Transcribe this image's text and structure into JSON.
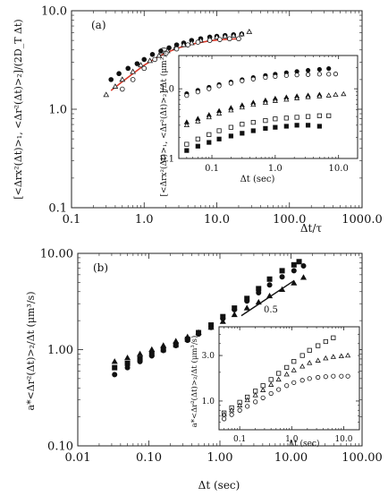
{
  "chart_data": [
    {
      "type": "scatter",
      "panel_label": "(a)",
      "xscale": "log",
      "yscale": "log",
      "xlim": [
        0.1,
        1000.0
      ],
      "ylim": [
        0.1,
        10.0
      ],
      "xticklabels": [
        "0.1",
        "1.0",
        "10.0",
        "100.0",
        "1000.0"
      ],
      "yticklabels": [
        "0.1",
        "1.0",
        "10.0"
      ],
      "xlabel": "Δt/τ",
      "ylabel": "[<Δrx²(Δt)>₁, <Δr²(Δt)>₂]/(2D_T Δt)",
      "series": [
        {
          "marker": "filled-circle",
          "x": [
            0.35,
            0.45,
            0.6,
            0.8,
            1.0,
            1.3,
            1.7,
            2.2,
            2.8,
            3.5,
            4.5,
            6,
            8,
            10,
            13,
            17,
            22
          ],
          "y": [
            2.0,
            2.3,
            2.6,
            2.9,
            3.2,
            3.6,
            3.9,
            4.2,
            4.5,
            4.7,
            5.0,
            5.2,
            5.4,
            5.5,
            5.6,
            5.7,
            5.8
          ]
        },
        {
          "marker": "open-triangle",
          "x": [
            0.3,
            0.4,
            0.5,
            0.7,
            0.9,
            1.2,
            1.6,
            2.1,
            2.7,
            3.5,
            4.5,
            6,
            8,
            10,
            13,
            17,
            22,
            28
          ],
          "y": [
            1.4,
            1.7,
            2.0,
            2.4,
            2.8,
            3.1,
            3.5,
            3.9,
            4.2,
            4.5,
            4.7,
            5.0,
            5.2,
            5.4,
            5.5,
            5.6,
            5.8,
            6.1
          ]
        },
        {
          "marker": "open-circle",
          "x": [
            0.5,
            0.7,
            1.0,
            1.4,
            2.0,
            2.8,
            4,
            5.5,
            8,
            11,
            15,
            20
          ],
          "y": [
            1.6,
            2.0,
            2.6,
            3.2,
            3.7,
            4.1,
            4.5,
            4.8,
            5.0,
            5.1,
            5.2,
            5.2
          ]
        }
      ],
      "fit": {
        "color": "#d93a2b",
        "x": [
          0.35,
          0.5,
          0.7,
          1,
          1.5,
          2,
          3,
          5,
          8,
          12,
          20
        ],
        "y": [
          1.55,
          1.9,
          2.3,
          2.8,
          3.35,
          3.75,
          4.2,
          4.65,
          4.95,
          5.1,
          5.2
        ]
      },
      "inset": {
        "type": "scatter",
        "xscale": "log",
        "yscale": "log",
        "xlim": [
          0.03,
          20
        ],
        "ylim": [
          0.1,
          3.0
        ],
        "xticklabels": [
          "0.1",
          "1.0",
          "10.0"
        ],
        "yticklabels": [
          "0.1",
          "1.0"
        ],
        "xlabel": "Δt (sec)",
        "ylabel": "[<Δrx²(Δt)>₁, <Δr²(Δt)>₂]/Δt (μm²/s)",
        "series": [
          {
            "marker": "filled-circle",
            "x": [
              0.04,
              0.06,
              0.09,
              0.13,
              0.2,
              0.3,
              0.45,
              0.7,
              1,
              1.5,
              2.2,
              3.3,
              5,
              7
            ],
            "y": [
              0.85,
              0.95,
              1.05,
              1.15,
              1.25,
              1.35,
              1.45,
              1.55,
              1.62,
              1.7,
              1.77,
              1.84,
              1.9,
              1.95
            ]
          },
          {
            "marker": "open-circle",
            "x": [
              0.04,
              0.06,
              0.09,
              0.13,
              0.2,
              0.3,
              0.45,
              0.7,
              1,
              1.5,
              2.2,
              3.3,
              5,
              7,
              9
            ],
            "y": [
              0.8,
              0.9,
              1.0,
              1.1,
              1.2,
              1.3,
              1.38,
              1.45,
              1.5,
              1.55,
              1.58,
              1.6,
              1.62,
              1.62,
              1.63
            ]
          },
          {
            "marker": "filled-triangle",
            "x": [
              0.04,
              0.06,
              0.09,
              0.13,
              0.2,
              0.3,
              0.45,
              0.7,
              1,
              1.5,
              2.2,
              3.3,
              5
            ],
            "y": [
              0.33,
              0.37,
              0.42,
              0.48,
              0.53,
              0.58,
              0.63,
              0.68,
              0.72,
              0.75,
              0.78,
              0.8,
              0.82
            ]
          },
          {
            "marker": "open-triangle",
            "x": [
              0.04,
              0.06,
              0.09,
              0.13,
              0.2,
              0.3,
              0.45,
              0.7,
              1,
              1.5,
              2.2,
              3.3,
              5,
              7,
              9,
              12
            ],
            "y": [
              0.3,
              0.34,
              0.39,
              0.44,
              0.49,
              0.54,
              0.59,
              0.63,
              0.67,
              0.7,
              0.73,
              0.76,
              0.78,
              0.8,
              0.82,
              0.84
            ]
          },
          {
            "marker": "open-square",
            "x": [
              0.04,
              0.06,
              0.09,
              0.13,
              0.2,
              0.3,
              0.45,
              0.7,
              1,
              1.5,
              2.2,
              3.3,
              5,
              7
            ],
            "y": [
              0.16,
              0.19,
              0.22,
              0.25,
              0.28,
              0.31,
              0.33,
              0.35,
              0.37,
              0.38,
              0.39,
              0.4,
              0.41,
              0.41
            ]
          },
          {
            "marker": "filled-square",
            "x": [
              0.04,
              0.06,
              0.09,
              0.13,
              0.2,
              0.3,
              0.45,
              0.7,
              1,
              1.5,
              2.2,
              3.3,
              5
            ],
            "y": [
              0.13,
              0.15,
              0.17,
              0.19,
              0.21,
              0.23,
              0.25,
              0.27,
              0.28,
              0.29,
              0.3,
              0.3,
              0.29
            ]
          }
        ]
      }
    },
    {
      "type": "scatter",
      "panel_label": "(b)",
      "xscale": "log",
      "yscale": "log",
      "xlim": [
        0.01,
        100.0
      ],
      "ylim": [
        0.1,
        10.0
      ],
      "xticklabels": [
        "0.01",
        "0.10",
        "1.00",
        "10.00",
        "100.00"
      ],
      "yticklabels": [
        "0.10",
        "1.00",
        "10.00"
      ],
      "xlabel": "Δt (sec)",
      "ylabel": "a*<Δr²(Δt)>₂/Δt (μm³/s)",
      "slope_label": "0.5",
      "slope_line": {
        "x": [
          2.0,
          11.0
        ],
        "y": [
          2.25,
          5.2
        ]
      },
      "series": [
        {
          "marker": "filled-circle",
          "x": [
            0.033,
            0.05,
            0.075,
            0.11,
            0.16,
            0.24,
            0.35,
            0.5,
            0.75,
            1.1,
            1.6,
            2.4,
            3.5,
            5,
            7.5,
            11,
            15
          ],
          "y": [
            0.55,
            0.65,
            0.75,
            0.86,
            0.98,
            1.1,
            1.25,
            1.45,
            1.7,
            2.1,
            2.6,
            3.2,
            3.9,
            4.7,
            5.7,
            6.6,
            7.4
          ]
        },
        {
          "marker": "filled-square",
          "x": [
            0.033,
            0.05,
            0.075,
            0.11,
            0.16,
            0.24,
            0.35,
            0.5,
            0.75,
            1.1,
            1.6,
            2.4,
            3.5,
            5,
            7.5,
            11,
            13
          ],
          "y": [
            0.65,
            0.72,
            0.8,
            0.9,
            1.0,
            1.12,
            1.28,
            1.5,
            1.8,
            2.2,
            2.7,
            3.4,
            4.3,
            5.4,
            6.6,
            7.6,
            8.2
          ]
        },
        {
          "marker": "filled-triangle",
          "x": [
            0.033,
            0.05,
            0.075,
            0.11,
            0.16,
            0.24,
            0.35,
            0.5,
            0.75,
            1.1,
            1.6,
            2.4,
            3.5,
            5,
            7.5,
            11,
            15
          ],
          "y": [
            0.75,
            0.82,
            0.9,
            1.0,
            1.1,
            1.22,
            1.35,
            1.5,
            1.7,
            1.95,
            2.3,
            2.7,
            3.1,
            3.6,
            4.2,
            4.9,
            5.6
          ]
        }
      ],
      "inset": {
        "type": "scatter",
        "xscale": "log",
        "yscale": "log",
        "xlim": [
          0.04,
          20
        ],
        "ylim": [
          0.5,
          6
        ],
        "xticklabels": [
          "0.1",
          "1.0",
          "10.0"
        ],
        "yticklabels": [
          "1.0",
          "3.0"
        ],
        "xlabel": "Δt (sec)",
        "ylabel": "a*<Δr²(Δt)>₂/Δt (μm³/s)",
        "series": [
          {
            "marker": "open-square",
            "x": [
              0.05,
              0.07,
              0.1,
              0.14,
              0.2,
              0.28,
              0.4,
              0.56,
              0.8,
              1.1,
              1.6,
              2.2,
              3.2,
              4.5,
              6.3
            ],
            "y": [
              0.75,
              0.85,
              0.97,
              1.1,
              1.27,
              1.45,
              1.68,
              1.95,
              2.25,
              2.6,
              3.0,
              3.4,
              3.8,
              4.2,
              4.6
            ]
          },
          {
            "marker": "open-triangle",
            "x": [
              0.05,
              0.07,
              0.1,
              0.14,
              0.2,
              0.28,
              0.4,
              0.56,
              0.8,
              1.1,
              1.6,
              2.2,
              3.2,
              4.5,
              6.3,
              9,
              12
            ],
            "y": [
              0.72,
              0.8,
              0.9,
              1.02,
              1.15,
              1.3,
              1.48,
              1.68,
              1.9,
              2.1,
              2.3,
              2.5,
              2.65,
              2.8,
              2.9,
              2.95,
              3.0
            ]
          },
          {
            "marker": "open-circle",
            "x": [
              0.05,
              0.07,
              0.1,
              0.14,
              0.2,
              0.28,
              0.4,
              0.56,
              0.8,
              1.1,
              1.6,
              2.2,
              3.2,
              4.5,
              6.3,
              9,
              12
            ],
            "y": [
              0.65,
              0.72,
              0.8,
              0.88,
              0.98,
              1.08,
              1.2,
              1.32,
              1.45,
              1.56,
              1.65,
              1.72,
              1.77,
              1.8,
              1.82,
              1.82,
              1.82
            ]
          }
        ]
      }
    }
  ]
}
